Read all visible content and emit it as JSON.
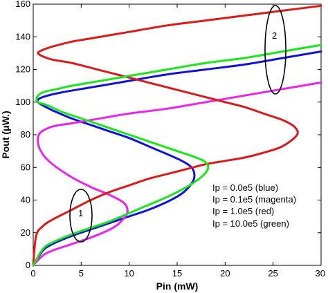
{
  "chart_data": {
    "type": "line",
    "xlabel": "Pin (mW)",
    "ylabel": "Pout (μW.)",
    "xlim": [
      0,
      30
    ],
    "ylim": [
      0,
      160
    ],
    "xticks": [
      "0",
      "5",
      "10",
      "15",
      "20",
      "25",
      "30"
    ],
    "yticks": [
      "0",
      "20",
      "40",
      "60",
      "80",
      "100",
      "120",
      "140",
      "160"
    ],
    "grid": false,
    "legend_text": [
      "Ip = 0.0e5 (blue)",
      "Ip = 0.1e5 (magenta)",
      "Ip = 1.0e5 (red)",
      "Ip = 10.0e5 (green)"
    ],
    "annotations": [
      "1",
      "2"
    ],
    "colors": {
      "blue": "#1010e0",
      "magenta": "#ee22ee",
      "red": "#e01818",
      "green": "#18e818"
    },
    "series": [
      {
        "color": "blue",
        "x": [
          0,
          1,
          2,
          4,
          6,
          8,
          10,
          12,
          14,
          15.5,
          16.5,
          16.8,
          16.5,
          15.5,
          14,
          12,
          10,
          8,
          6,
          4,
          2,
          1,
          0.5,
          0.6,
          1.5,
          3,
          5,
          7,
          10,
          14,
          18,
          22,
          26,
          30
        ],
        "y": [
          0,
          9,
          13,
          18,
          22,
          26,
          30,
          34,
          39,
          44,
          50,
          55,
          60,
          64,
          68,
          73,
          78,
          82,
          86,
          90,
          95,
          98,
          100,
          102,
          104,
          106,
          108,
          110,
          113,
          117,
          120,
          123,
          127,
          131
        ]
      },
      {
        "color": "magenta",
        "x": [
          0,
          1,
          2,
          4,
          6,
          8,
          9,
          9.8,
          9.5,
          8,
          6,
          4,
          2,
          1,
          0.5,
          0.7,
          2,
          4,
          6,
          8,
          10,
          14,
          18,
          22,
          26,
          30
        ],
        "y": [
          0,
          6,
          9,
          13,
          17,
          22,
          26,
          32,
          38,
          43,
          48,
          54,
          62,
          68,
          75,
          81,
          85,
          87,
          89,
          91,
          93,
          96,
          100,
          104,
          108,
          112
        ]
      },
      {
        "color": "red",
        "x": [
          0,
          0.3,
          1,
          2,
          4,
          6,
          8,
          10,
          12,
          14,
          16,
          18,
          20,
          22,
          24,
          26,
          27.5,
          27.2,
          26,
          24,
          22,
          20,
          18,
          16,
          14,
          12,
          10,
          8,
          6,
          4,
          2,
          1,
          0.5,
          1,
          2,
          4,
          6,
          8,
          10,
          14,
          18,
          22,
          26,
          30
        ],
        "y": [
          0,
          18,
          24,
          28,
          34,
          40,
          45,
          49,
          53,
          56,
          59,
          62,
          64,
          66,
          69,
          73,
          80,
          85,
          89,
          93,
          97,
          100,
          103,
          106,
          109,
          112,
          115,
          118,
          121,
          124,
          126,
          128,
          130,
          132,
          134,
          137,
          139,
          141,
          143,
          147,
          150,
          153,
          156,
          159
        ]
      },
      {
        "color": "green",
        "x": [
          0,
          1,
          2,
          4,
          6,
          8,
          10,
          12,
          14,
          16,
          17.5,
          18.2,
          18,
          17,
          15,
          13,
          11,
          9,
          7,
          5,
          3,
          1.5,
          0.5,
          0.4,
          1,
          2.5,
          4,
          6,
          8,
          10,
          14,
          18,
          22,
          26,
          30
        ],
        "y": [
          0,
          10,
          14,
          19,
          23,
          27,
          32,
          37,
          42,
          48,
          54,
          59,
          63,
          66,
          70,
          74,
          78,
          82,
          86,
          90,
          94,
          98,
          100,
          103,
          106,
          108,
          110,
          112,
          114,
          116,
          120,
          124,
          127,
          131,
          135
        ]
      }
    ]
  }
}
